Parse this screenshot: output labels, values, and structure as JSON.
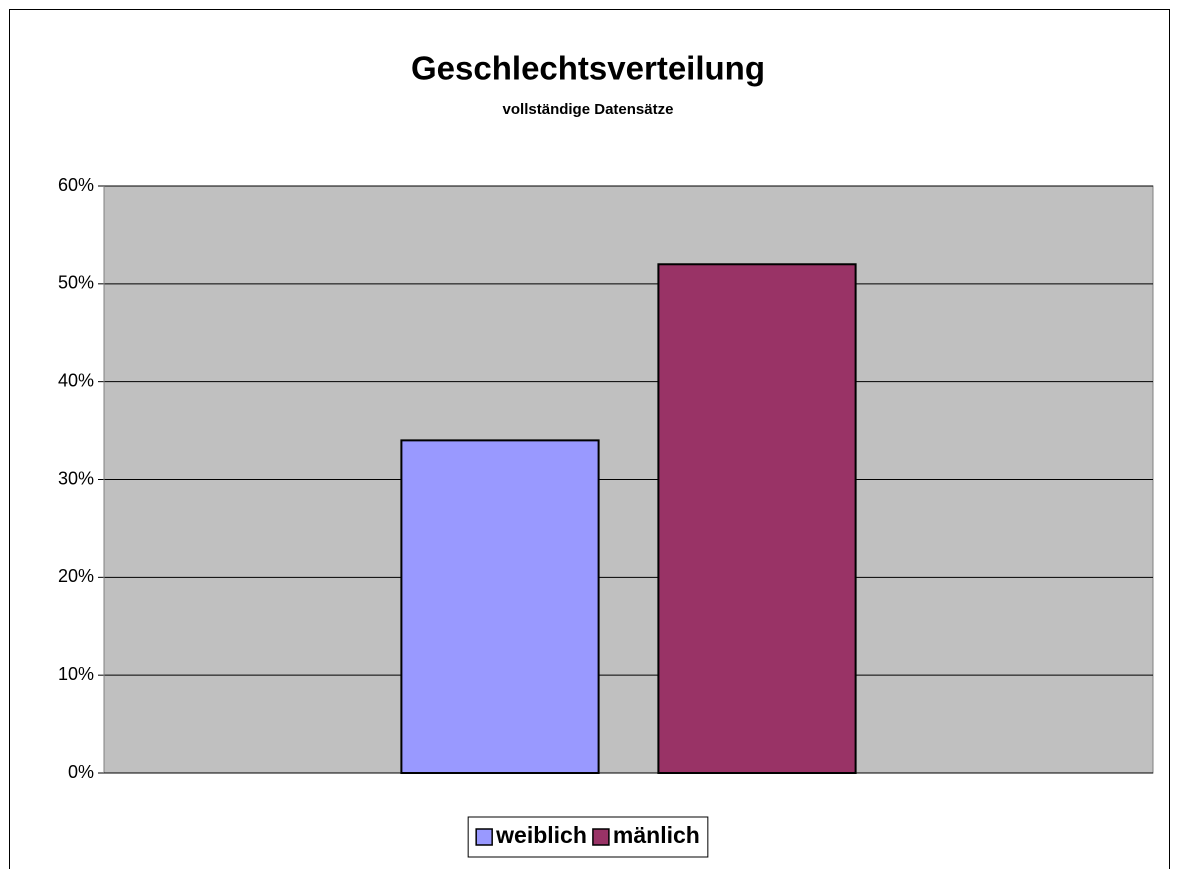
{
  "chart_data": {
    "type": "bar",
    "title": "Geschlechtsverteilung",
    "subtitle": "vollständige Datensätze",
    "categories": [
      null
    ],
    "series": [
      {
        "name": "weiblich",
        "color": "#9999ff",
        "values": [
          34
        ]
      },
      {
        "name": "mänlich",
        "color": "#993366",
        "values": [
          52
        ]
      }
    ],
    "ylim": [
      0,
      60
    ],
    "yticks": [
      {
        "value": 0,
        "label": "0%"
      },
      {
        "value": 10,
        "label": "10%"
      },
      {
        "value": 20,
        "label": "20%"
      },
      {
        "value": 30,
        "label": "30%"
      },
      {
        "value": 40,
        "label": "40%"
      },
      {
        "value": 50,
        "label": "50%"
      },
      {
        "value": 60,
        "label": "60%"
      }
    ],
    "grid": true,
    "legend": "bottom"
  }
}
